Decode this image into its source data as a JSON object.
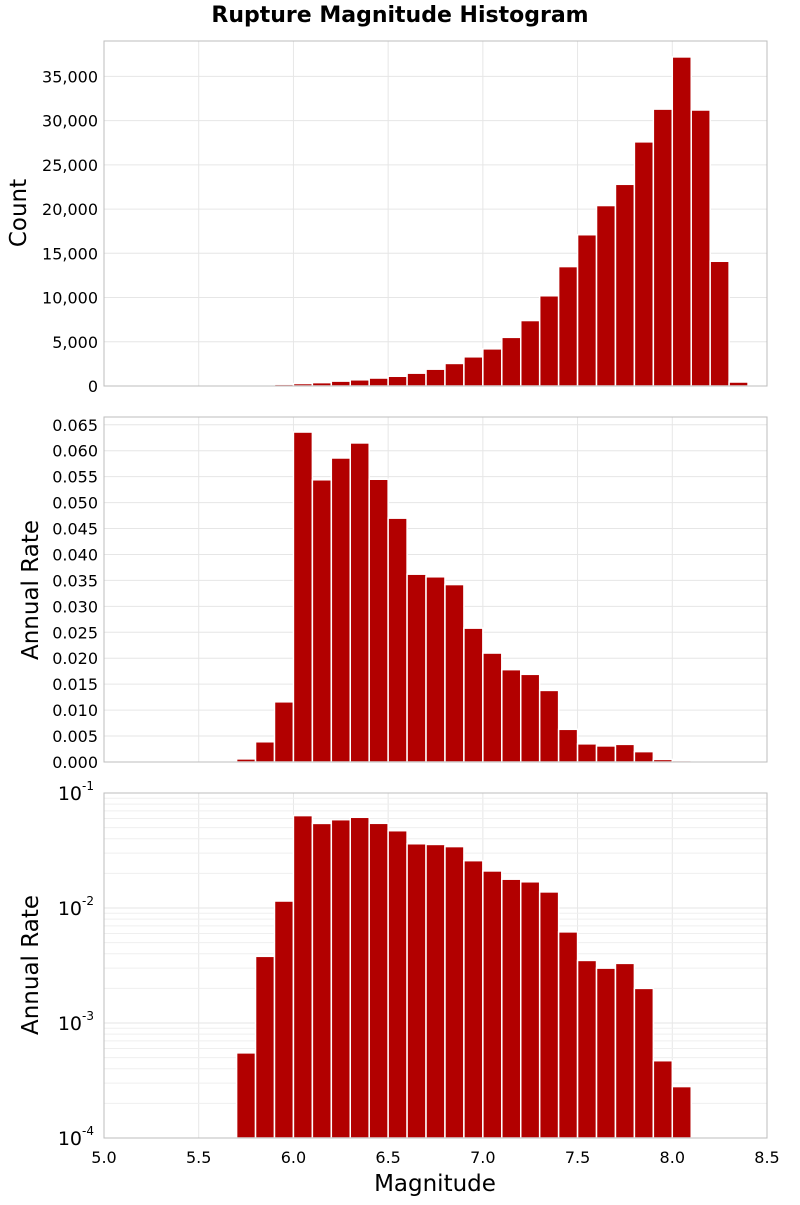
{
  "chart_data": [
    {
      "type": "bar",
      "title": "Rupture Magnitude Histogram",
      "ylabel": "Count",
      "xlabel": "",
      "xlim": [
        5.0,
        8.5
      ],
      "ylim": [
        0,
        39000
      ],
      "bin_width": 0.1,
      "x": [
        5.75,
        5.85,
        5.95,
        6.05,
        6.15,
        6.25,
        6.35,
        6.45,
        6.55,
        6.65,
        6.75,
        6.85,
        6.95,
        7.05,
        7.15,
        7.25,
        7.35,
        7.45,
        7.55,
        7.65,
        7.75,
        7.85,
        7.95,
        8.05,
        8.15,
        8.25,
        8.35
      ],
      "values": [
        50,
        130,
        200,
        280,
        380,
        550,
        700,
        900,
        1100,
        1450,
        1900,
        2550,
        3300,
        4200,
        5500,
        7400,
        10200,
        13500,
        17100,
        20400,
        22800,
        27600,
        31300,
        37200,
        31200,
        14100,
        450
      ],
      "yticks": [
        0,
        5000,
        10000,
        15000,
        20000,
        25000,
        30000,
        35000
      ],
      "ytick_labels": [
        "0",
        "5,000",
        "10,000",
        "15,000",
        "20,000",
        "25,000",
        "30,000",
        "35,000"
      ],
      "grid": true
    },
    {
      "type": "bar",
      "title": "",
      "ylabel": "Annual Rate",
      "xlabel": "",
      "xlim": [
        5.0,
        8.5
      ],
      "ylim": [
        0,
        0.0665
      ],
      "bin_width": 0.1,
      "x": [
        5.75,
        5.85,
        5.95,
        6.05,
        6.15,
        6.25,
        6.35,
        6.45,
        6.55,
        6.65,
        6.75,
        6.85,
        6.95,
        7.05,
        7.15,
        7.25,
        7.35,
        7.45,
        7.55,
        7.65,
        7.75,
        7.85,
        7.95,
        8.05
      ],
      "values": [
        0.0006,
        0.0039,
        0.0116,
        0.0636,
        0.0544,
        0.0586,
        0.0615,
        0.0545,
        0.047,
        0.0362,
        0.0357,
        0.0342,
        0.0258,
        0.021,
        0.0178,
        0.0169,
        0.0138,
        0.0063,
        0.0035,
        0.0031,
        0.0034,
        0.002,
        0.0005,
        0.0003
      ],
      "yticks": [
        0,
        0.005,
        0.01,
        0.015,
        0.02,
        0.025,
        0.03,
        0.035,
        0.04,
        0.045,
        0.05,
        0.055,
        0.06,
        0.065
      ],
      "ytick_labels": [
        "0.000",
        "0.005",
        "0.010",
        "0.015",
        "0.020",
        "0.025",
        "0.030",
        "0.035",
        "0.040",
        "0.045",
        "0.050",
        "0.055",
        "0.060",
        "0.065"
      ],
      "grid": true
    },
    {
      "type": "bar",
      "title": "",
      "ylabel": "Annual Rate",
      "xlabel": "Magnitude",
      "xlim": [
        5.0,
        8.5
      ],
      "ylim": [
        0.0001,
        0.1
      ],
      "yscale": "log",
      "bin_width": 0.1,
      "x": [
        5.75,
        5.85,
        5.95,
        6.05,
        6.15,
        6.25,
        6.35,
        6.45,
        6.55,
        6.65,
        6.75,
        6.85,
        6.95,
        7.05,
        7.15,
        7.25,
        7.35,
        7.45,
        7.55,
        7.65,
        7.75,
        7.85,
        7.95,
        8.05
      ],
      "values": [
        0.00055,
        0.0038,
        0.0115,
        0.0636,
        0.0544,
        0.0586,
        0.0615,
        0.0545,
        0.047,
        0.0362,
        0.0357,
        0.0342,
        0.0258,
        0.021,
        0.0178,
        0.0169,
        0.0138,
        0.0062,
        0.0035,
        0.003,
        0.0033,
        0.002,
        0.00047,
        0.00028
      ],
      "yticks": [
        0.0001,
        0.001,
        0.01,
        0.1
      ],
      "ytick_labels": [
        {
          "base": "10",
          "exp": "-4"
        },
        {
          "base": "10",
          "exp": "-3"
        },
        {
          "base": "10",
          "exp": "-2"
        },
        {
          "base": "10",
          "exp": "-1"
        }
      ],
      "xticks": [
        5.0,
        5.5,
        6.0,
        6.5,
        7.0,
        7.5,
        8.0,
        8.5
      ],
      "xtick_labels": [
        "5.0",
        "5.5",
        "6.0",
        "6.5",
        "7.0",
        "7.5",
        "8.0",
        "8.5"
      ],
      "grid": true
    }
  ],
  "colors": {
    "bar_fill": "#b20000",
    "bar_edge": "#ffffff",
    "grid": "#e6e6e6",
    "frame": "#bdbdbd"
  }
}
